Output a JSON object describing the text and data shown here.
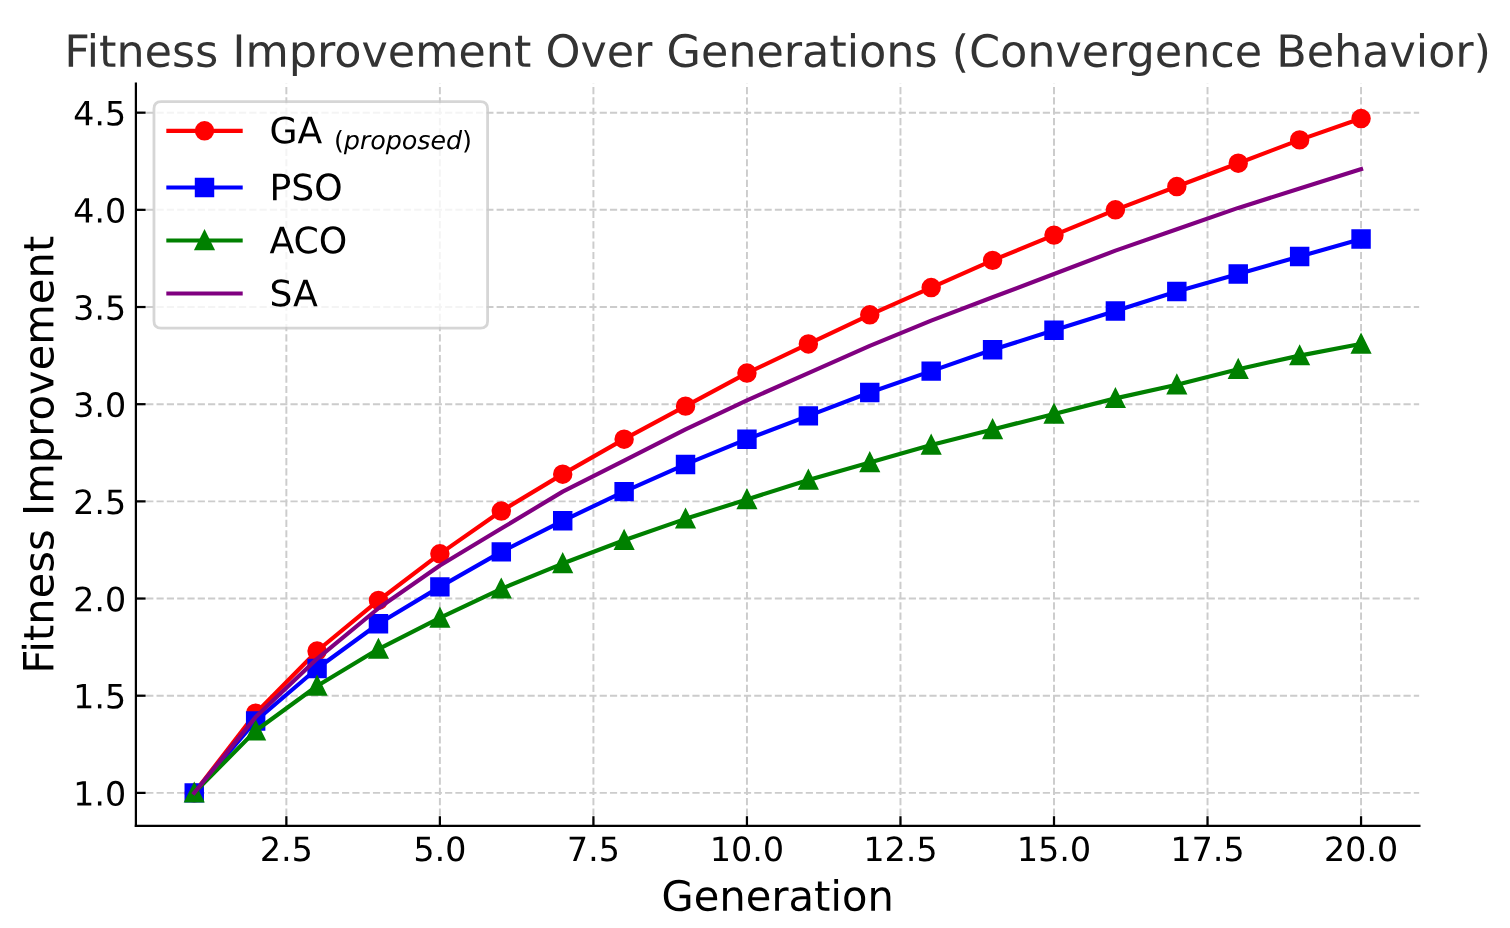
{
  "chart_data": {
    "type": "line",
    "title": "Fitness Improvement Over Generations (Convergence Behavior)",
    "xlabel": "Generation",
    "ylabel": "Fitness Improvement",
    "x": [
      1,
      2,
      3,
      4,
      5,
      6,
      7,
      8,
      9,
      10,
      11,
      12,
      13,
      14,
      15,
      16,
      17,
      18,
      19,
      20
    ],
    "series": [
      {
        "name": "GA $_{(proposed)}$",
        "color": "#ff0000",
        "marker": "circle",
        "values": [
          1.0,
          1.41,
          1.73,
          1.99,
          2.23,
          2.45,
          2.64,
          2.82,
          2.99,
          3.16,
          3.31,
          3.46,
          3.6,
          3.74,
          3.87,
          4.0,
          4.12,
          4.24,
          4.36,
          4.47
        ]
      },
      {
        "name": "PSO",
        "color": "#0000ff",
        "marker": "square",
        "values": [
          1.0,
          1.37,
          1.64,
          1.87,
          2.06,
          2.24,
          2.4,
          2.55,
          2.69,
          2.82,
          2.94,
          3.06,
          3.17,
          3.28,
          3.38,
          3.48,
          3.58,
          3.67,
          3.76,
          3.85
        ]
      },
      {
        "name": "ACO",
        "color": "#008000",
        "marker": "triangle",
        "values": [
          1.0,
          1.32,
          1.55,
          1.74,
          1.9,
          2.05,
          2.18,
          2.3,
          2.41,
          2.51,
          2.61,
          2.7,
          2.79,
          2.87,
          2.95,
          3.03,
          3.1,
          3.18,
          3.25,
          3.31
        ]
      },
      {
        "name": "SA",
        "color": "#800080",
        "marker": "none",
        "values": [
          1.0,
          1.39,
          1.69,
          1.95,
          2.17,
          2.36,
          2.55,
          2.71,
          2.87,
          3.02,
          3.16,
          3.3,
          3.43,
          3.55,
          3.67,
          3.79,
          3.9,
          4.01,
          4.11,
          4.21
        ]
      }
    ],
    "xlim": [
      0.05,
      20.95
    ],
    "xticks": [
      {
        "value": 2.5,
        "label": "2.5"
      },
      {
        "value": 5,
        "label": "5.0"
      },
      {
        "value": 7.5,
        "label": "7.5"
      },
      {
        "value": 10,
        "label": "10.0"
      },
      {
        "value": 12.5,
        "label": "12.5"
      },
      {
        "value": 15,
        "label": "15.0"
      },
      {
        "value": 17.5,
        "label": "17.5"
      },
      {
        "value": 20,
        "label": "20.0"
      }
    ],
    "ylim": [
      0.83,
      4.65
    ],
    "yticks": [
      {
        "value": 1,
        "label": "1.0"
      },
      1.5,
      {
        "value": 2,
        "label": "2.0"
      },
      2.5,
      {
        "value": 3,
        "label": "3.0"
      },
      3.5,
      {
        "value": 4,
        "label": "4.0"
      },
      4.5
    ],
    "grid": true,
    "legend": "top left",
    "line_style": "solid"
  }
}
